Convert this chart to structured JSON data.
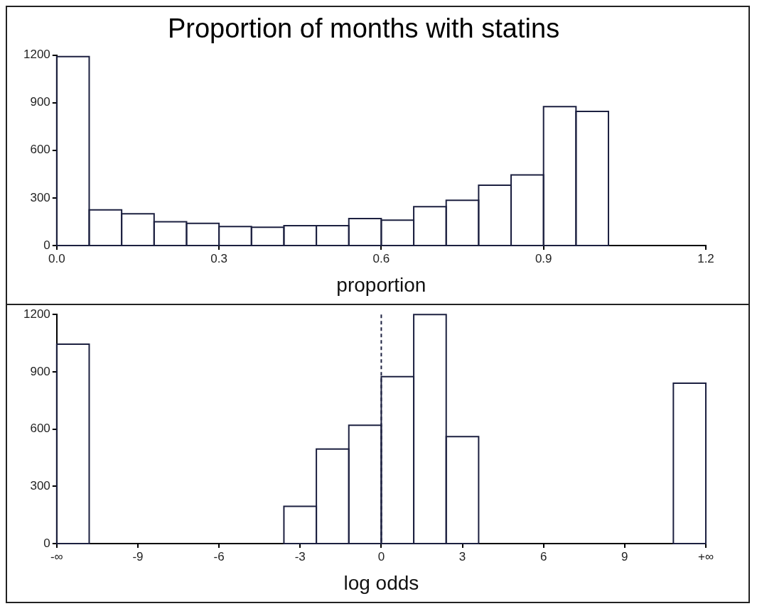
{
  "chart_data": [
    {
      "type": "histogram",
      "title": "Proportion of months with statins",
      "xlabel": "proportion",
      "bins": [
        0,
        0.06,
        0.12,
        0.18,
        0.24,
        0.3,
        0.36,
        0.42,
        0.48,
        0.54,
        0.6,
        0.66,
        0.72,
        0.78,
        0.84,
        0.9,
        0.96,
        1.02
      ],
      "values": [
        1190,
        225,
        200,
        150,
        140,
        120,
        115,
        125,
        125,
        170,
        160,
        245,
        285,
        380,
        445,
        875,
        845
      ],
      "color": "#1c2040",
      "xlim": [
        0,
        1.2
      ],
      "xticks": [
        {
          "value": 0,
          "label": "0.0"
        },
        0.3,
        0.6,
        0.9,
        1.2
      ],
      "ylim": [
        0,
        1200
      ],
      "yticks": [
        0,
        300,
        600,
        900,
        1200
      ],
      "grid": false,
      "legend": false
    },
    {
      "type": "histogram",
      "xlabel": "log odds",
      "bins": [
        -12,
        -10.8,
        -3.6,
        -2.4,
        -1.2,
        0,
        1.2,
        2.4,
        3.6,
        10.8,
        12
      ],
      "values": [
        1045,
        null,
        195,
        495,
        620,
        875,
        1200,
        560,
        null,
        840
      ],
      "color": "#1c2040",
      "xlim": [
        -12,
        12
      ],
      "xticks": [
        {
          "value": -12,
          "label": "-∞"
        },
        -9,
        -6,
        -3,
        0,
        3,
        6,
        9,
        {
          "value": 12,
          "label": "+∞"
        }
      ],
      "ylim": [
        0,
        1200
      ],
      "yticks": [
        0,
        300,
        600,
        900,
        1200
      ],
      "grid": false,
      "legend": false,
      "ref_lines": [
        {
          "axis": "x",
          "value": 0,
          "color": "#1c2040",
          "line_style": "dashed"
        }
      ]
    }
  ]
}
